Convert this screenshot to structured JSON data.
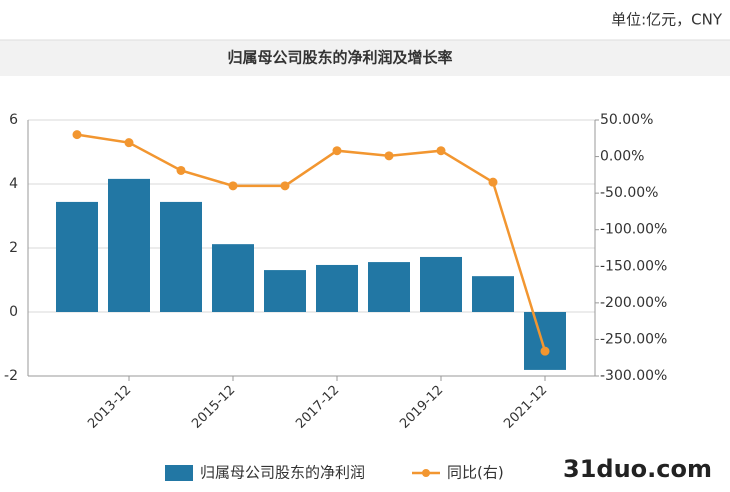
{
  "unit_note": "单位:亿元，CNY",
  "watermark": "31duo.com",
  "chart_data": {
    "type": "bar",
    "title": "归属母公司股东的净利润及增长率",
    "categories": [
      null,
      "2013-12",
      null,
      "2015-12",
      null,
      "2017-12",
      null,
      "2019-12",
      null,
      "2021-12"
    ],
    "series": [
      {
        "name": "归属母公司股东的净利润",
        "type": "bar",
        "color": "#2277a4",
        "values": [
          3.44,
          4.16,
          3.44,
          2.12,
          1.31,
          1.47,
          1.56,
          1.72,
          1.12,
          -1.81
        ]
      },
      {
        "name": "同比(右)",
        "type": "line",
        "axis": "y2",
        "color": "#f29630",
        "values": [
          30,
          19,
          -19,
          -40,
          -40,
          8,
          1,
          8,
          -35,
          -266
        ]
      }
    ],
    "ylim": [
      -2,
      6
    ],
    "yticks": [
      -2,
      0,
      2,
      4,
      6
    ],
    "y2lim": [
      -300,
      50
    ],
    "y2ticks": [
      {
        "value": 50,
        "label": "50.00%"
      },
      {
        "value": 0,
        "label": "0.00%"
      },
      {
        "value": -50,
        "label": "-50.00%"
      },
      {
        "value": -100,
        "label": "-100.00%"
      },
      {
        "value": -150,
        "label": "-150.00%"
      },
      {
        "value": -200,
        "label": "-200.00%"
      },
      {
        "value": -250,
        "label": "-250.00%"
      },
      {
        "value": -300,
        "label": "-300.00%"
      }
    ],
    "grid": true
  }
}
